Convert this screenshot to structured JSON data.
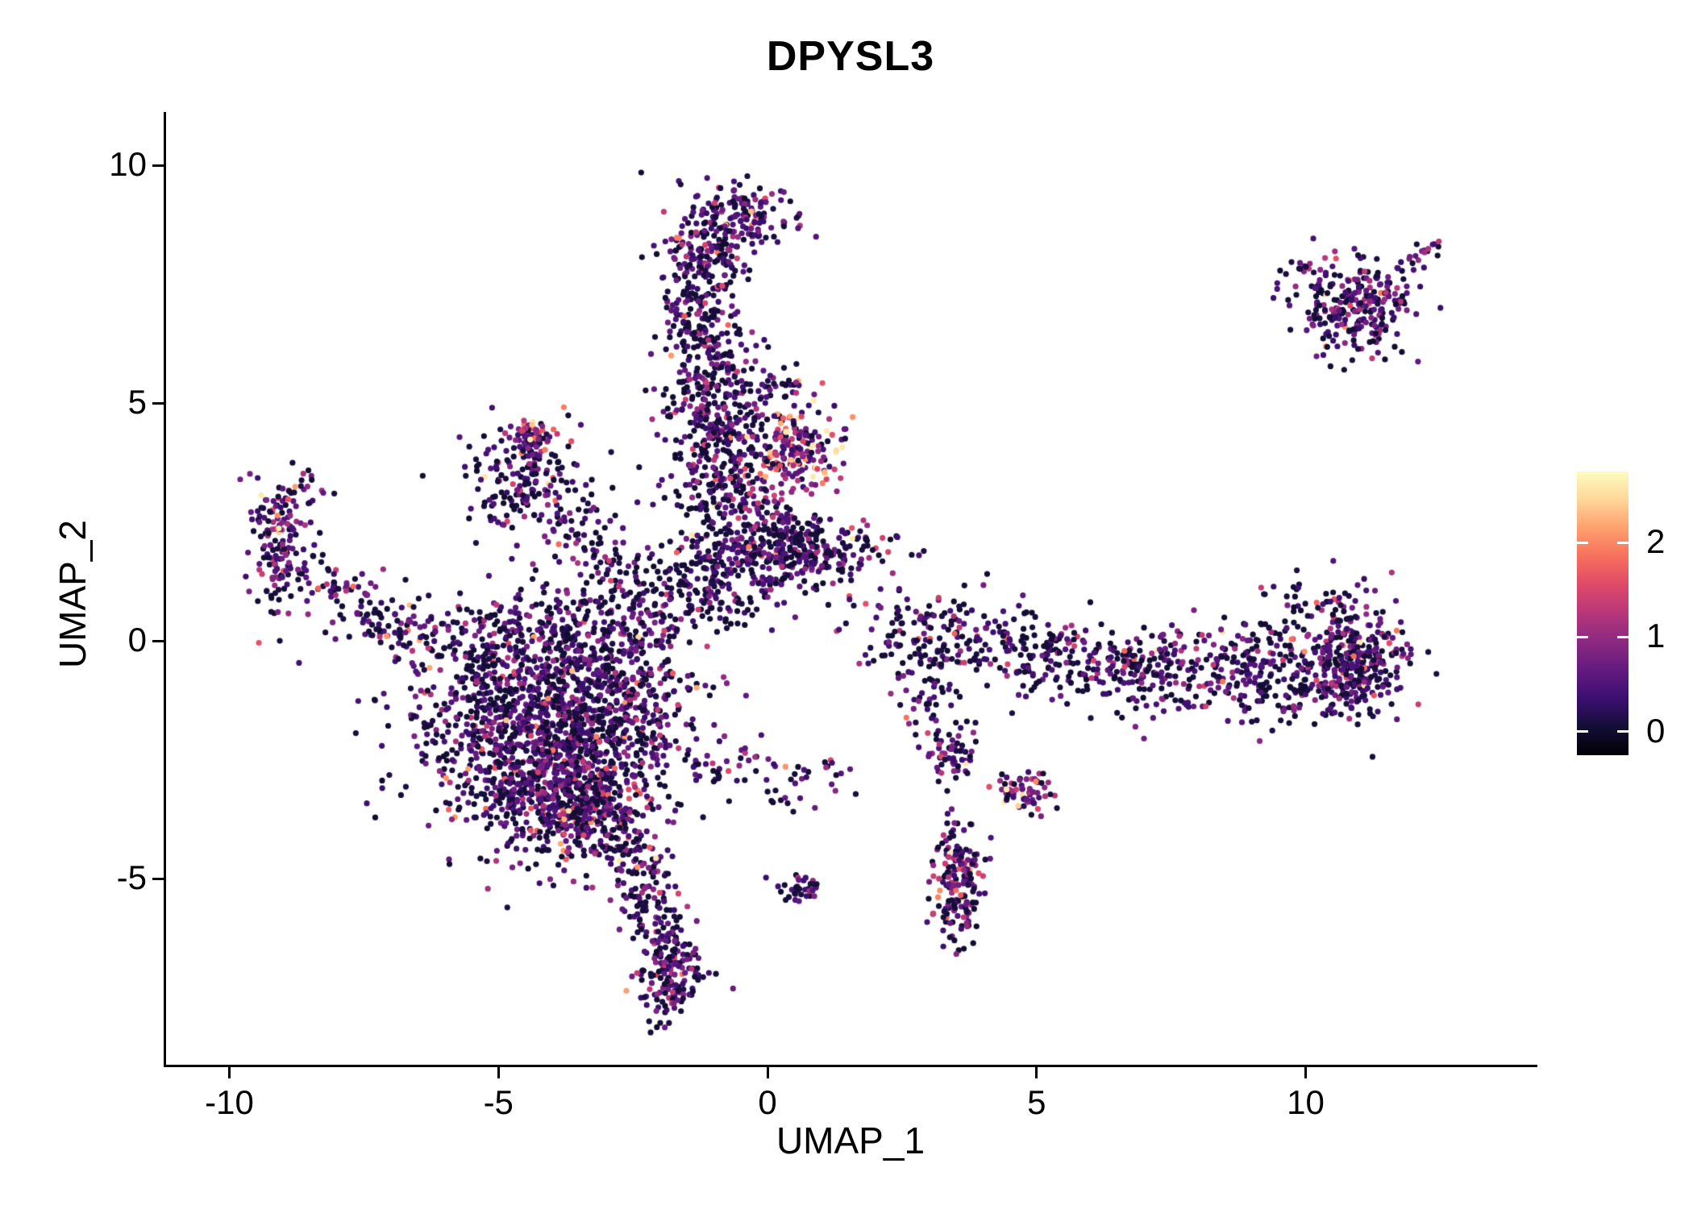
{
  "chart_data": {
    "type": "scatter",
    "title": "DPYSL3",
    "xlabel": "UMAP_1",
    "ylabel": "UMAP_2",
    "x_ticks": [
      -10,
      -5,
      0,
      5,
      10
    ],
    "y_ticks": [
      -5,
      0,
      5,
      10
    ],
    "xlim": [
      -11.2,
      14.2
    ],
    "ylim": [
      -9.0,
      10.9
    ],
    "grid": false,
    "legend": {
      "position": "right",
      "ticks": [
        0,
        1,
        2
      ],
      "domain": [
        -0.25,
        2.75
      ],
      "colormap": "magma",
      "stops": [
        [
          0.0,
          "#000004"
        ],
        [
          0.1,
          "#140e36"
        ],
        [
          0.2,
          "#3b0f70"
        ],
        [
          0.3,
          "#641a80"
        ],
        [
          0.4,
          "#8c2981"
        ],
        [
          0.5,
          "#b73779"
        ],
        [
          0.6,
          "#de4968"
        ],
        [
          0.7,
          "#f7705c"
        ],
        [
          0.8,
          "#fe9f6d"
        ],
        [
          0.9,
          "#fed799"
        ],
        [
          1.0,
          "#fcfdbf"
        ]
      ]
    },
    "point_radius": 3.6,
    "seed": 42,
    "clusters": [
      {
        "name": "main-blob",
        "kind": "gauss",
        "cx": -4.1,
        "cy": -1.9,
        "sx": 1.15,
        "sy": 1.15,
        "n": 1500,
        "p0": 0.42,
        "vmean": 0.95
      },
      {
        "name": "main-blob-dense",
        "kind": "gauss",
        "cx": -3.5,
        "cy": -3.5,
        "sx": 0.55,
        "sy": 0.6,
        "n": 320,
        "p0": 0.35,
        "vmean": 1.0
      },
      {
        "name": "main-blob-top",
        "kind": "gauss",
        "cx": -4.6,
        "cy": 0.1,
        "sx": 1.2,
        "sy": 0.5,
        "n": 230,
        "p0": 0.5,
        "vmean": 0.8
      },
      {
        "name": "blob-east-edge",
        "kind": "gauss",
        "cx": -2.6,
        "cy": -1.2,
        "sx": 0.5,
        "sy": 1.0,
        "n": 200,
        "p0": 0.45,
        "vmean": 0.9
      },
      {
        "name": "down-tail",
        "kind": "line",
        "x1": -2.7,
        "y1": -3.9,
        "x2": -1.85,
        "y2": -6.5,
        "w": 0.3,
        "n": 170,
        "p0": 0.45,
        "vmean": 0.9
      },
      {
        "name": "tail-foot",
        "kind": "gauss",
        "cx": -1.8,
        "cy": -7.0,
        "sx": 0.3,
        "sy": 0.45,
        "n": 150,
        "p0": 0.4,
        "vmean": 0.9
      },
      {
        "name": "left-arm",
        "kind": "line",
        "x1": -6.4,
        "y1": 0.0,
        "x2": -8.8,
        "y2": 1.6,
        "w": 0.32,
        "n": 130,
        "p0": 0.5,
        "vmean": 0.9
      },
      {
        "name": "left-arm-tip",
        "kind": "gauss",
        "cx": -9.1,
        "cy": 2.1,
        "sx": 0.28,
        "sy": 0.7,
        "n": 140,
        "p0": 0.35,
        "vmean": 1.3
      },
      {
        "name": "left-arm-top",
        "kind": "line",
        "x1": -9.0,
        "y1": 2.9,
        "x2": -8.5,
        "y2": 3.25,
        "w": 0.2,
        "n": 25,
        "p0": 0.4,
        "vmean": 1.0
      },
      {
        "name": "triangle-cluster",
        "kind": "gauss",
        "cx": -4.4,
        "cy": 3.3,
        "sx": 0.6,
        "sy": 0.55,
        "n": 180,
        "p0": 0.5,
        "vmean": 0.9
      },
      {
        "name": "triangle-hot-spot",
        "kind": "gauss",
        "cx": -4.35,
        "cy": 4.25,
        "sx": 0.18,
        "sy": 0.18,
        "n": 70,
        "p0": 0.2,
        "vmean": 1.8
      },
      {
        "name": "triangle-bridge",
        "kind": "line",
        "x1": -3.85,
        "y1": 2.85,
        "x2": -2.6,
        "y2": 1.5,
        "w": 0.25,
        "n": 55,
        "p0": 0.55,
        "vmean": 0.8
      },
      {
        "name": "column-top",
        "kind": "gauss",
        "cx": -0.55,
        "cy": 9.0,
        "sx": 0.5,
        "sy": 0.3,
        "n": 140,
        "p0": 0.35,
        "vmean": 1.0
      },
      {
        "name": "column-top2",
        "kind": "gauss",
        "cx": -1.05,
        "cy": 8.25,
        "sx": 0.38,
        "sy": 0.3,
        "n": 100,
        "p0": 0.4,
        "vmean": 0.9
      },
      {
        "name": "column-upper",
        "kind": "line",
        "x1": -1.35,
        "y1": 7.7,
        "x2": -1.0,
        "y2": 5.3,
        "w": 0.4,
        "n": 280,
        "p0": 0.5,
        "vmean": 0.85
      },
      {
        "name": "column-mid",
        "kind": "gauss",
        "cx": -0.9,
        "cy": 4.6,
        "sx": 0.5,
        "sy": 0.55,
        "n": 170,
        "p0": 0.45,
        "vmean": 0.9
      },
      {
        "name": "column-lower",
        "kind": "line",
        "x1": -1.0,
        "y1": 4.0,
        "x2": -0.55,
        "y2": 2.3,
        "w": 0.55,
        "n": 230,
        "p0": 0.5,
        "vmean": 0.9
      },
      {
        "name": "column-base",
        "kind": "gauss",
        "cx": -0.85,
        "cy": 1.3,
        "sx": 0.65,
        "sy": 0.6,
        "n": 160,
        "p0": 0.55,
        "vmean": 0.85
      },
      {
        "name": "hot-patch",
        "kind": "gauss",
        "cx": 0.55,
        "cy": 4.0,
        "sx": 0.42,
        "sy": 0.45,
        "n": 180,
        "p0": 0.18,
        "vmean": 2.0
      },
      {
        "name": "patch-above",
        "kind": "gauss",
        "cx": 0.25,
        "cy": 5.35,
        "sx": 0.3,
        "sy": 0.25,
        "n": 30,
        "p0": 0.4,
        "vmean": 1.2
      },
      {
        "name": "band-two",
        "kind": "gauss",
        "cx": 0.6,
        "cy": 1.95,
        "sx": 0.8,
        "sy": 0.38,
        "n": 340,
        "p0": 0.45,
        "vmean": 0.95
      },
      {
        "name": "bridge-left",
        "kind": "gauss",
        "cx": -2.3,
        "cy": 0.9,
        "sx": 0.85,
        "sy": 0.6,
        "n": 140,
        "p0": 0.55,
        "vmean": 0.8
      },
      {
        "name": "right-band-a",
        "kind": "line",
        "x1": 2.2,
        "y1": 0.35,
        "x2": 6.5,
        "y2": -0.5,
        "w": 0.45,
        "n": 330,
        "p0": 0.5,
        "vmean": 0.85
      },
      {
        "name": "right-band-b",
        "kind": "line",
        "x1": 6.5,
        "y1": -0.55,
        "x2": 11.2,
        "y2": -0.75,
        "w": 0.5,
        "n": 470,
        "p0": 0.45,
        "vmean": 0.9
      },
      {
        "name": "right-band-end",
        "kind": "gauss",
        "cx": 10.95,
        "cy": -0.3,
        "sx": 0.45,
        "sy": 0.65,
        "n": 260,
        "p0": 0.4,
        "vmean": 0.95
      },
      {
        "name": "band-above-sparse",
        "kind": "gauss",
        "cx": 10.05,
        "cy": 0.75,
        "sx": 0.5,
        "sy": 0.3,
        "n": 35,
        "p0": 0.55,
        "vmean": 0.8
      },
      {
        "name": "band-start-drip",
        "kind": "gauss",
        "cx": 3.0,
        "cy": -1.2,
        "sx": 0.3,
        "sy": 0.5,
        "n": 45,
        "p0": 0.5,
        "vmean": 0.8
      },
      {
        "name": "branch-upper",
        "kind": "gauss",
        "cx": 3.4,
        "cy": -2.45,
        "sx": 0.22,
        "sy": 0.3,
        "n": 55,
        "p0": 0.4,
        "vmean": 1.0
      },
      {
        "name": "branch-lower",
        "kind": "gauss",
        "cx": 4.85,
        "cy": -3.2,
        "sx": 0.28,
        "sy": 0.22,
        "n": 65,
        "p0": 0.3,
        "vmean": 1.5
      },
      {
        "name": "south-clump",
        "kind": "gauss",
        "cx": 3.55,
        "cy": -5.0,
        "sx": 0.24,
        "sy": 0.62,
        "n": 180,
        "p0": 0.3,
        "vmean": 1.4
      },
      {
        "name": "tiny-pair",
        "kind": "gauss",
        "cx": 0.65,
        "cy": -5.2,
        "sx": 0.2,
        "sy": 0.16,
        "n": 35,
        "p0": 0.45,
        "vmean": 0.9
      },
      {
        "name": "arc-sparse",
        "kind": "line",
        "x1": -1.6,
        "y1": -2.6,
        "x2": 1.4,
        "y2": -3.0,
        "w": 0.35,
        "n": 65,
        "p0": 0.55,
        "vmean": 0.9
      },
      {
        "name": "topright-cluster",
        "kind": "gauss",
        "cx": 10.9,
        "cy": 7.05,
        "sx": 0.55,
        "sy": 0.5,
        "n": 260,
        "p0": 0.4,
        "vmean": 0.95
      },
      {
        "name": "topright-arm",
        "kind": "line",
        "x1": 11.7,
        "y1": 7.6,
        "x2": 12.35,
        "y2": 8.25,
        "w": 0.15,
        "n": 20,
        "p0": 0.4,
        "vmean": 1.2
      },
      {
        "name": "topright-outlier",
        "kind": "gauss",
        "cx": 12.45,
        "cy": 8.35,
        "sx": 0.06,
        "sy": 0.06,
        "n": 3,
        "p0": 0.0,
        "vmean": 1.8
      },
      {
        "name": "topright-west-dots",
        "kind": "gauss",
        "cx": 9.9,
        "cy": 7.8,
        "sx": 0.18,
        "sy": 0.12,
        "n": 8,
        "p0": 0.5,
        "vmean": 0.8
      }
    ]
  }
}
